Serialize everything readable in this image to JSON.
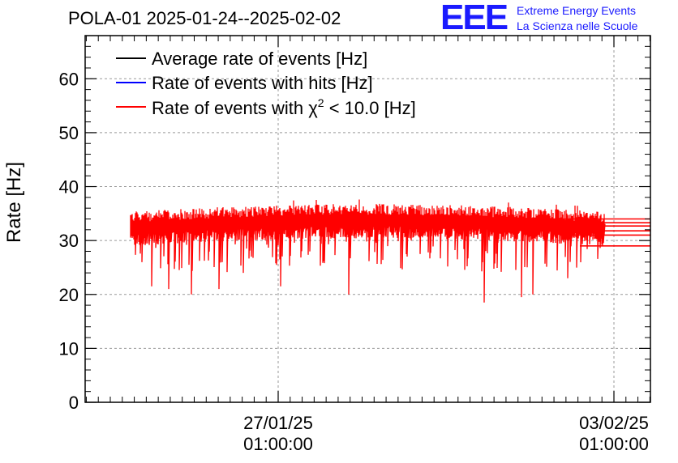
{
  "chart_data": {
    "type": "line",
    "title": "POLA-01 2025-01-24--2025-02-02",
    "ylabel": "Rate [Hz]",
    "xlabel": "",
    "ylim": [
      0,
      68
    ],
    "y_ticks": [
      0,
      10,
      20,
      30,
      40,
      50,
      60
    ],
    "x_ticks": [
      {
        "date": "27/01/25",
        "time": "01:00:00"
      },
      {
        "date": "03/02/25",
        "time": "01:00:00"
      }
    ],
    "grid": true,
    "legend_position": "top-left",
    "series": [
      {
        "name": "Average rate of events [Hz]",
        "color": "#000000"
      },
      {
        "name": "Rate of events with hits [Hz]",
        "color": "#0000ff"
      },
      {
        "name": "Rate of events with χ² < 10.0 [Hz]",
        "name_prefix": "Rate of events with ",
        "name_symbol": "χ",
        "name_sup": "2",
        "name_suffix": " < 10.0 [Hz]",
        "color": "#ff0000",
        "baseline_hz": 33.2,
        "band_hz": [
          30.5,
          35.5
        ],
        "deep_dips_hz": [
          21.5,
          21.0,
          20.0,
          21.0,
          24.0,
          21.5,
          20.0,
          18.5,
          19.5,
          20.0,
          23.0
        ],
        "trailing_levels_hz": [
          34.0,
          33.3,
          32.7,
          31.8,
          31.0,
          29.0
        ]
      }
    ]
  },
  "logo": {
    "mark": "EEE",
    "line1": "Extreme Energy Events",
    "line2": "La Scienza nelle Scuole"
  }
}
